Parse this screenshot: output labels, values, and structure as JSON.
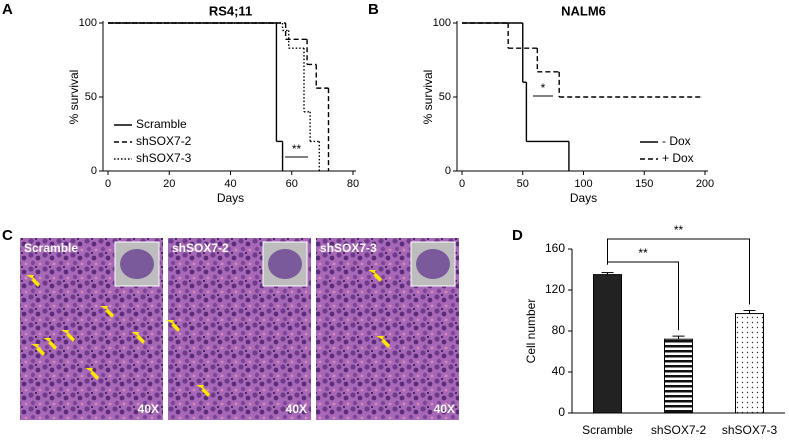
{
  "panels": [
    "A",
    "B",
    "C",
    "D"
  ],
  "chart_data": [
    {
      "type": "survival",
      "title": "RS4;11",
      "x_label": "Days",
      "y_label": "% survival",
      "xlim": [
        0,
        80
      ],
      "xticks": [
        0,
        20,
        40,
        60,
        80
      ],
      "ylim": [
        0,
        100
      ],
      "yticks": [
        0,
        50,
        100
      ],
      "legend": "bottom-left",
      "annotations": [
        "**"
      ],
      "series": [
        {
          "name": "Scramble",
          "color": "#000000",
          "dash": "solid",
          "x": [
            0,
            55,
            57
          ],
          "values": [
            100,
            20,
            0
          ]
        },
        {
          "name": "shSOX7-2",
          "color": "#000000",
          "dash": "dashed",
          "x": [
            0,
            58,
            65,
            68,
            72
          ],
          "values": [
            100,
            89,
            72,
            56,
            0
          ]
        },
        {
          "name": "shSOX7-3",
          "color": "#000000",
          "dash": "dotted",
          "x": [
            0,
            57,
            59,
            64,
            66,
            69
          ],
          "values": [
            100,
            95,
            83,
            40,
            20,
            0
          ]
        }
      ]
    },
    {
      "type": "survival",
      "title": "NALM6",
      "x_label": "Days",
      "y_label": "% survival",
      "xlim": [
        0,
        200
      ],
      "xticks": [
        0,
        50,
        100,
        150,
        200
      ],
      "ylim": [
        0,
        100
      ],
      "yticks": [
        0,
        50,
        100
      ],
      "legend": "bottom-right",
      "annotations": [
        "*"
      ],
      "series": [
        {
          "name": "- Dox",
          "color": "#000000",
          "dash": "solid",
          "x": [
            0,
            50,
            53,
            88
          ],
          "values": [
            100,
            60,
            20,
            0
          ]
        },
        {
          "name": "+ Dox",
          "color": "#000000",
          "dash": "dashed",
          "x": [
            0,
            38,
            62,
            80,
            197
          ],
          "values": [
            100,
            83,
            67,
            50,
            50
          ]
        }
      ]
    },
    {
      "type": "bar",
      "y_label": "Cell number",
      "categories": [
        "Scramble",
        "shSOX7-2",
        "shSOX7-3"
      ],
      "values": [
        135,
        72,
        97
      ],
      "errors": [
        2,
        3,
        3
      ],
      "fills": [
        "solid",
        "striped",
        "dotted"
      ],
      "color": "#222222",
      "ylim": [
        0,
        160
      ],
      "yticks": [
        0,
        40,
        80,
        120,
        160
      ],
      "annotations": [
        "**",
        "**"
      ]
    }
  ],
  "micrographs": [
    {
      "label": "Scramble",
      "magnification": "40X"
    },
    {
      "label": "shSOX7-2",
      "magnification": "40X"
    },
    {
      "label": "shSOX7-3",
      "magnification": "40X"
    }
  ]
}
